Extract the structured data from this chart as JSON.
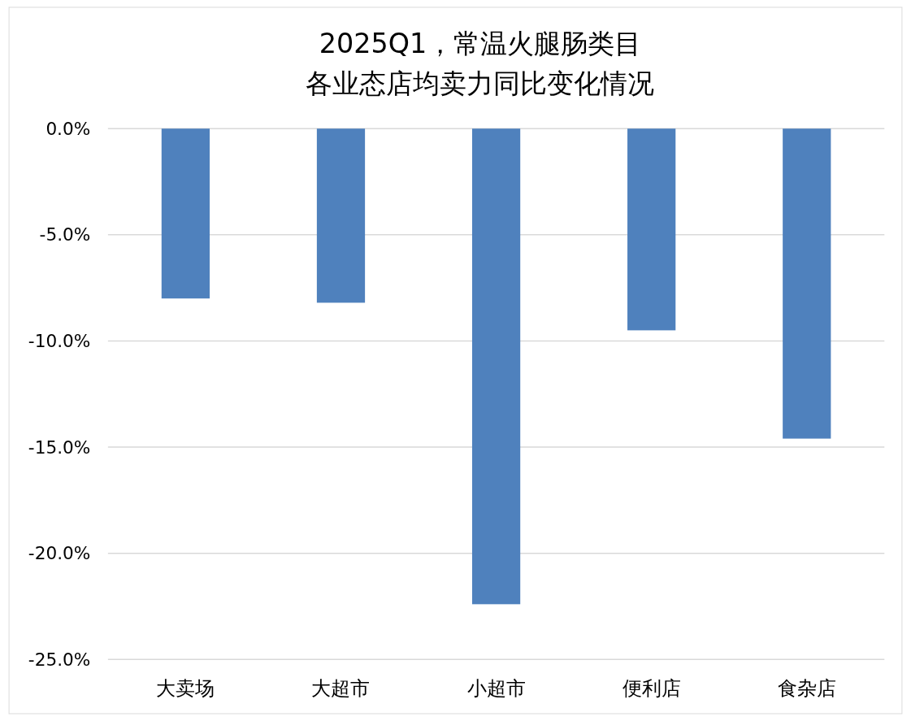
{
  "chart_data": {
    "type": "bar",
    "title": "2025Q1，常温火腿肠类目",
    "subtitle": "各业态店均卖力同比变化情况",
    "categories": [
      "大卖场",
      "大超市",
      "小超市",
      "便利店",
      "食杂店"
    ],
    "values": [
      -8.0,
      -8.2,
      -22.4,
      -9.5,
      -14.6
    ],
    "color": "#4f81bd",
    "ylim": [
      -25,
      0
    ],
    "yticks": [
      {
        "value": 0,
        "label": "0.0%"
      },
      {
        "value": -5,
        "label": "-5.0%"
      },
      {
        "value": -10,
        "label": "-10.0%"
      },
      {
        "value": -15,
        "label": "-15.0%"
      },
      {
        "value": -20,
        "label": "-20.0%"
      },
      {
        "value": -25,
        "label": "-25.0%"
      }
    ],
    "grid": "y"
  }
}
